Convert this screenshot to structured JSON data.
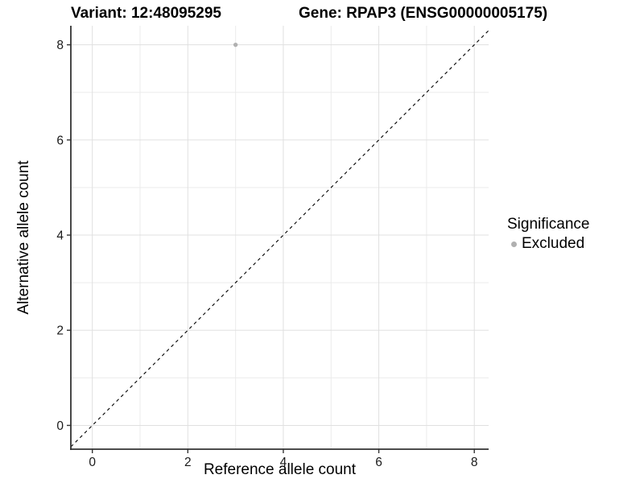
{
  "titles": {
    "variant": "Variant: 12:48095295",
    "gene": "Gene: RPAP3 (ENSG00000005175)"
  },
  "axes": {
    "x_label": "Reference allele count",
    "y_label": "Alternative allele count"
  },
  "legend": {
    "title": "Significance",
    "items": [
      {
        "label": "Excluded",
        "color": "#b0b0b0"
      }
    ]
  },
  "colors": {
    "background": "#ffffff",
    "grid_major": "#e0e0e0",
    "grid_minor": "#ebebeb",
    "axis_line": "#333333",
    "tick_mark": "#333333",
    "tick_text": "#1a1a1a",
    "reference_line": "#000000",
    "point": "#b0b0b0"
  },
  "chart_data": {
    "type": "scatter",
    "title": "Variant: 12:48095295 | Gene: RPAP3 (ENSG00000005175)",
    "xlabel": "Reference allele count",
    "ylabel": "Alternative allele count",
    "xlim": [
      -0.45,
      8.3
    ],
    "ylim": [
      -0.5,
      8.4
    ],
    "xticks": [
      0,
      2,
      4,
      6,
      8
    ],
    "yticks": [
      0,
      2,
      4,
      6,
      8
    ],
    "grid": "major at even integers, minor at odd integers",
    "legend_position": "right",
    "series": [
      {
        "name": "Excluded",
        "color": "#b0b0b0",
        "points": [
          {
            "x": 3,
            "y": 8
          }
        ]
      }
    ],
    "reference_line": {
      "kind": "identity y=x",
      "style": "dashed",
      "color": "#000000"
    }
  }
}
